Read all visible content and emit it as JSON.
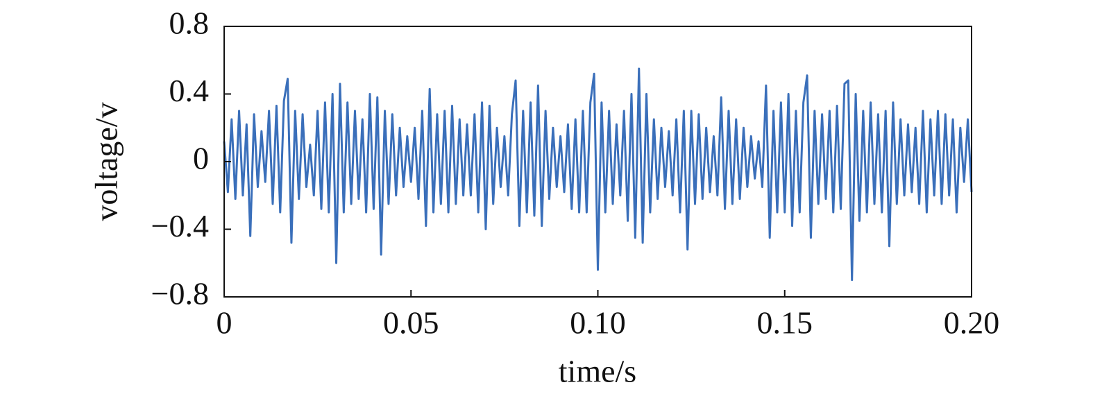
{
  "chart_data": {
    "type": "line",
    "xlabel": "time/s",
    "ylabel": "voltage/v",
    "xlim": [
      0,
      0.2
    ],
    "xticks": [
      0,
      0.05,
      {
        "value": 0.1,
        "label": "0.10"
      },
      0.15,
      {
        "value": 0.2,
        "label": "0.20"
      }
    ],
    "ylim": [
      -0.8,
      0.8
    ],
    "yticks": [
      {
        "value": -0.8,
        "label": "−0.8"
      },
      {
        "value": -0.4,
        "label": "−0.4"
      },
      0,
      0.4,
      0.8
    ],
    "grid": false,
    "x": [
      0,
      0.001,
      0.002,
      0.003,
      0.004,
      0.005,
      0.006,
      0.007,
      0.008,
      0.009,
      0.01,
      0.011,
      0.012,
      0.013,
      0.014,
      0.015,
      0.016,
      0.017,
      0.018,
      0.019,
      0.02,
      0.021,
      0.022,
      0.023,
      0.024,
      0.025,
      0.026,
      0.027,
      0.028,
      0.029,
      0.03,
      0.031,
      0.032,
      0.033,
      0.034,
      0.035,
      0.036,
      0.037,
      0.038,
      0.039,
      0.04,
      0.041,
      0.042,
      0.043,
      0.044,
      0.045,
      0.046,
      0.047,
      0.048,
      0.049,
      0.05,
      0.051,
      0.052,
      0.053,
      0.054,
      0.055,
      0.056,
      0.057,
      0.058,
      0.059,
      0.06,
      0.061,
      0.062,
      0.063,
      0.064,
      0.065,
      0.066,
      0.067,
      0.068,
      0.069,
      0.07,
      0.071,
      0.072,
      0.073,
      0.074,
      0.075,
      0.076,
      0.077,
      0.078,
      0.079,
      0.08,
      0.081,
      0.082,
      0.083,
      0.084,
      0.085,
      0.086,
      0.087,
      0.088,
      0.089,
      0.09,
      0.091,
      0.092,
      0.093,
      0.094,
      0.095,
      0.096,
      0.097,
      0.098,
      0.099,
      0.1,
      0.101,
      0.102,
      0.103,
      0.104,
      0.105,
      0.106,
      0.107,
      0.108,
      0.109,
      0.11,
      0.111,
      0.112,
      0.113,
      0.114,
      0.115,
      0.116,
      0.117,
      0.118,
      0.119,
      0.12,
      0.121,
      0.122,
      0.123,
      0.124,
      0.125,
      0.126,
      0.127,
      0.128,
      0.129,
      0.13,
      0.131,
      0.132,
      0.133,
      0.134,
      0.135,
      0.136,
      0.137,
      0.138,
      0.139,
      0.14,
      0.141,
      0.142,
      0.143,
      0.144,
      0.145,
      0.146,
      0.147,
      0.148,
      0.149,
      0.15,
      0.151,
      0.152,
      0.153,
      0.154,
      0.155,
      0.156,
      0.157,
      0.158,
      0.159,
      0.16,
      0.161,
      0.162,
      0.163,
      0.164,
      0.165,
      0.166,
      0.167,
      0.168,
      0.169,
      0.17,
      0.171,
      0.172,
      0.173,
      0.174,
      0.175,
      0.176,
      0.177,
      0.178,
      0.179,
      0.18,
      0.181,
      0.182,
      0.183,
      0.184,
      0.185,
      0.186,
      0.187,
      0.188,
      0.189,
      0.19,
      0.191,
      0.192,
      0.193,
      0.194,
      0.195,
      0.196,
      0.197,
      0.198,
      0.199,
      0.2
    ],
    "series": [
      {
        "color": "#3a6fba",
        "values": [
          0.12,
          -0.18,
          0.25,
          -0.22,
          0.3,
          -0.2,
          0.22,
          -0.44,
          0.28,
          -0.15,
          0.18,
          -0.12,
          0.3,
          -0.25,
          0.33,
          -0.3,
          0.36,
          0.49,
          -0.48,
          0.3,
          -0.22,
          0.28,
          -0.15,
          0.1,
          -0.2,
          0.3,
          -0.28,
          0.35,
          -0.3,
          0.4,
          -0.6,
          0.46,
          -0.3,
          0.35,
          -0.25,
          0.3,
          -0.22,
          0.25,
          -0.3,
          0.4,
          -0.28,
          0.38,
          -0.55,
          0.3,
          -0.25,
          0.28,
          -0.2,
          0.2,
          -0.15,
          0.15,
          -0.12,
          0.2,
          -0.22,
          0.3,
          -0.38,
          0.43,
          -0.3,
          0.28,
          -0.25,
          0.3,
          -0.3,
          0.33,
          -0.25,
          0.25,
          -0.2,
          0.22,
          -0.2,
          0.28,
          -0.3,
          0.35,
          -0.4,
          0.33,
          -0.25,
          0.2,
          -0.15,
          0.15,
          -0.2,
          0.28,
          0.48,
          -0.38,
          0.3,
          -0.3,
          0.35,
          -0.32,
          0.45,
          -0.38,
          0.3,
          -0.22,
          0.2,
          -0.15,
          0.15,
          -0.18,
          0.22,
          -0.28,
          0.25,
          -0.3,
          0.3,
          -0.3,
          0.35,
          0.52,
          -0.64,
          0.35,
          -0.3,
          0.3,
          -0.25,
          0.22,
          -0.2,
          0.3,
          -0.35,
          0.4,
          -0.45,
          0.55,
          -0.48,
          0.4,
          -0.3,
          0.25,
          -0.22,
          0.2,
          -0.15,
          0.18,
          -0.2,
          0.25,
          -0.3,
          0.3,
          -0.52,
          0.3,
          -0.25,
          0.28,
          -0.22,
          0.2,
          -0.18,
          0.15,
          -0.2,
          0.38,
          -0.28,
          0.3,
          -0.25,
          0.25,
          -0.22,
          0.2,
          -0.15,
          0.15,
          -0.1,
          0.12,
          -0.15,
          0.45,
          -0.45,
          0.3,
          -0.3,
          0.35,
          -0.3,
          0.4,
          -0.38,
          0.3,
          -0.3,
          0.35,
          0.51,
          -0.45,
          0.3,
          -0.25,
          0.28,
          -0.22,
          0.3,
          -0.3,
          0.33,
          -0.28,
          0.46,
          0.48,
          -0.7,
          0.4,
          -0.35,
          0.3,
          -0.3,
          0.35,
          -0.25,
          0.28,
          -0.3,
          0.3,
          -0.5,
          0.35,
          -0.25,
          0.25,
          -0.2,
          0.22,
          -0.18,
          0.2,
          -0.25,
          0.3,
          -0.3,
          0.25,
          -0.2,
          0.3,
          -0.25,
          0.28,
          -0.2,
          0.25,
          -0.3,
          0.2,
          -0.12,
          0.25,
          -0.18
        ]
      }
    ]
  }
}
